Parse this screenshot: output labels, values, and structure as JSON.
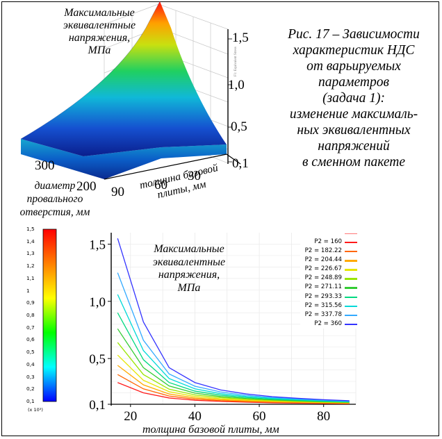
{
  "caption": {
    "lines": [
      "Рис. 17 – Зависимости",
      "характеристик НДС",
      "от варьируемых",
      "параметров",
      "(задача 1):",
      "изменение максималь-",
      "ных эквивалентных",
      "напряжений",
      "в сменном пакете"
    ]
  },
  "surface_labels": {
    "z_label_lines": [
      "Максимальные",
      "эквивалентные",
      "напряжения,",
      "МПа"
    ],
    "x_label_lines": [
      "диаметр",
      "провального",
      "отверстия, мм"
    ],
    "y_label_lines": [
      "толщина базовой",
      "плиты, мм"
    ],
    "z_ticks": [
      "1,5",
      "1,0",
      "0,5",
      "0,1"
    ],
    "diameter_ticks": [
      "300",
      "200"
    ],
    "thickness_ticks": [
      "90",
      "60",
      "30"
    ]
  },
  "colorbar": {
    "ticks": [
      "1,5",
      "1,4",
      "1,3",
      "1,2",
      "1,1",
      "1",
      "0,9",
      "0,8",
      "0,7",
      "0,6",
      "0,5",
      "0,4",
      "0,3",
      "0,2",
      "0,1"
    ],
    "multiplier": "(x 10³)",
    "colors": [
      "#ff0000",
      "#ff8000",
      "#ffff00",
      "#00ff00",
      "#00ffff",
      "#0000ff"
    ]
  },
  "chart_data": {
    "type": "line",
    "title_lines": [
      "Максимальные",
      "эквивалентные",
      "напряжения,",
      "МПа"
    ],
    "xlabel": "толщина базовой плиты, мм",
    "ylabel": "",
    "xlim": [
      14,
      90
    ],
    "ylim": [
      0.1,
      1.6
    ],
    "x_ticks": [
      "20",
      "40",
      "60",
      "80"
    ],
    "x_tick_values": [
      20,
      40,
      60,
      80
    ],
    "y_ticks": [
      "1,5",
      "1,0",
      "0,5",
      "0,1"
    ],
    "y_tick_values": [
      1.5,
      1.0,
      0.5,
      0.1
    ],
    "grid": true,
    "legend_position": "top-right",
    "x": [
      16,
      24,
      32,
      40,
      48,
      56,
      64,
      72,
      80,
      88
    ],
    "series": [
      {
        "name": "P2 = 160",
        "color": "#ff1a1a",
        "values": [
          0.29,
          0.2,
          0.155,
          0.135,
          0.125,
          0.118,
          0.113,
          0.11,
          0.107,
          0.105
        ]
      },
      {
        "name": "P2 = 182.22",
        "color": "#ff6600",
        "values": [
          0.36,
          0.235,
          0.172,
          0.145,
          0.132,
          0.124,
          0.118,
          0.114,
          0.11,
          0.108
        ]
      },
      {
        "name": "P2 = 204.44",
        "color": "#ffaa00",
        "values": [
          0.44,
          0.27,
          0.19,
          0.155,
          0.14,
          0.13,
          0.123,
          0.118,
          0.113,
          0.11
        ]
      },
      {
        "name": "P2 = 226.67",
        "color": "#e6e600",
        "values": [
          0.53,
          0.31,
          0.21,
          0.168,
          0.148,
          0.137,
          0.128,
          0.122,
          0.117,
          0.113
        ]
      },
      {
        "name": "P2 = 248.89",
        "color": "#99e600",
        "values": [
          0.64,
          0.36,
          0.232,
          0.182,
          0.158,
          0.144,
          0.134,
          0.126,
          0.12,
          0.115
        ]
      },
      {
        "name": "P2 = 271.11",
        "color": "#33cc33",
        "values": [
          0.76,
          0.42,
          0.26,
          0.198,
          0.168,
          0.151,
          0.139,
          0.13,
          0.123,
          0.118
        ]
      },
      {
        "name": "P2 = 293.33",
        "color": "#00d980",
        "values": [
          0.9,
          0.49,
          0.29,
          0.215,
          0.18,
          0.159,
          0.145,
          0.135,
          0.127,
          0.121
        ]
      },
      {
        "name": "P2 = 315.56",
        "color": "#00d9d9",
        "values": [
          1.06,
          0.57,
          0.325,
          0.235,
          0.193,
          0.168,
          0.152,
          0.14,
          0.131,
          0.124
        ]
      },
      {
        "name": "P2 = 337.78",
        "color": "#33aaff",
        "values": [
          1.25,
          0.66,
          0.365,
          0.258,
          0.208,
          0.178,
          0.159,
          0.146,
          0.135,
          0.127
        ]
      },
      {
        "name": "P2 = 360",
        "color": "#3333ff",
        "values": [
          1.55,
          0.82,
          0.42,
          0.29,
          0.225,
          0.19,
          0.167,
          0.152,
          0.14,
          0.131
        ]
      }
    ]
  }
}
